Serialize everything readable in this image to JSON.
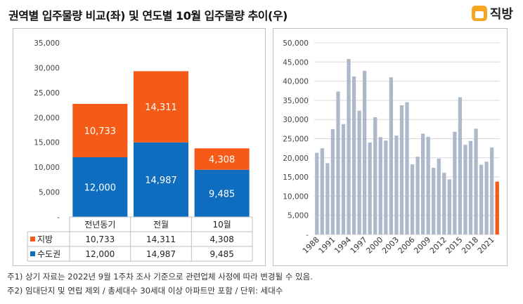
{
  "title": "권역별 입주물량 비교(좌) 및 연도별 10월 입주물량 추이(우)",
  "brand": {
    "logo_text": "직방",
    "logo_icon": "house-icon",
    "accent": "#f5a623"
  },
  "chart_data": [
    {
      "type": "bar",
      "stacked": true,
      "categories": [
        "전년동기",
        "전월",
        "10월"
      ],
      "series": [
        {
          "name": "수도권",
          "values": [
            12000,
            14987,
            9485
          ],
          "labels": [
            "12,000",
            "14,987",
            "9,485"
          ],
          "color": "#0f6dbf"
        },
        {
          "name": "지방",
          "values": [
            10733,
            14311,
            4308
          ],
          "labels": [
            "10,733",
            "14,311",
            "4,308"
          ],
          "color": "#f55b16"
        }
      ],
      "ylim": [
        0,
        35000
      ],
      "yticks": [
        "-",
        "5,000",
        "10,000",
        "15,000",
        "20,000",
        "25,000",
        "30,000",
        "35,000"
      ],
      "data_table": [
        {
          "name": "지방",
          "values": [
            "10,733",
            "14,311",
            "4,308"
          ]
        },
        {
          "name": "수도권",
          "values": [
            "12,000",
            "14,987",
            "9,485"
          ]
        }
      ],
      "grid": false
    },
    {
      "type": "bar",
      "x": [
        1988,
        1989,
        1990,
        1991,
        1992,
        1993,
        1994,
        1995,
        1996,
        1997,
        1998,
        1999,
        2000,
        2001,
        2002,
        2003,
        2004,
        2005,
        2006,
        2007,
        2008,
        2009,
        2010,
        2011,
        2012,
        2013,
        2014,
        2015,
        2016,
        2017,
        2018,
        2019,
        2020,
        2021,
        2022
      ],
      "values": [
        21300,
        22500,
        18600,
        27500,
        37300,
        28800,
        45800,
        41200,
        32300,
        42700,
        24000,
        30600,
        25400,
        24500,
        41000,
        25800,
        33700,
        34500,
        18300,
        20300,
        26300,
        25500,
        17400,
        19800,
        16100,
        14400,
        26800,
        35800,
        23400,
        24400,
        27600,
        18200,
        19000,
        22700,
        13800
      ],
      "highlight_index": 34,
      "bar_color": "#adb9ca",
      "highlight_color": "#f55b16",
      "xticks": [
        "1988",
        "1991",
        "1994",
        "1997",
        "2000",
        "2003",
        "2006",
        "2009",
        "2012",
        "2015",
        "2018",
        "2021"
      ],
      "ylim": [
        0,
        50000
      ],
      "yticks": [
        "-",
        "5,000",
        "10,000",
        "15,000",
        "20,000",
        "25,000",
        "30,000",
        "35,000",
        "40,000",
        "45,000",
        "50,000"
      ],
      "grid": true
    }
  ],
  "notes": [
    "주1) 상기 자료는 2022년 9월 1주차 조사 기준으로 관련업체 사정에 따라 변경될 수 있음.",
    "주2) 임대단지 및 연립 제외 / 총세대수 30세대 이상 아파트만 포함 / 단위: 세대수"
  ]
}
